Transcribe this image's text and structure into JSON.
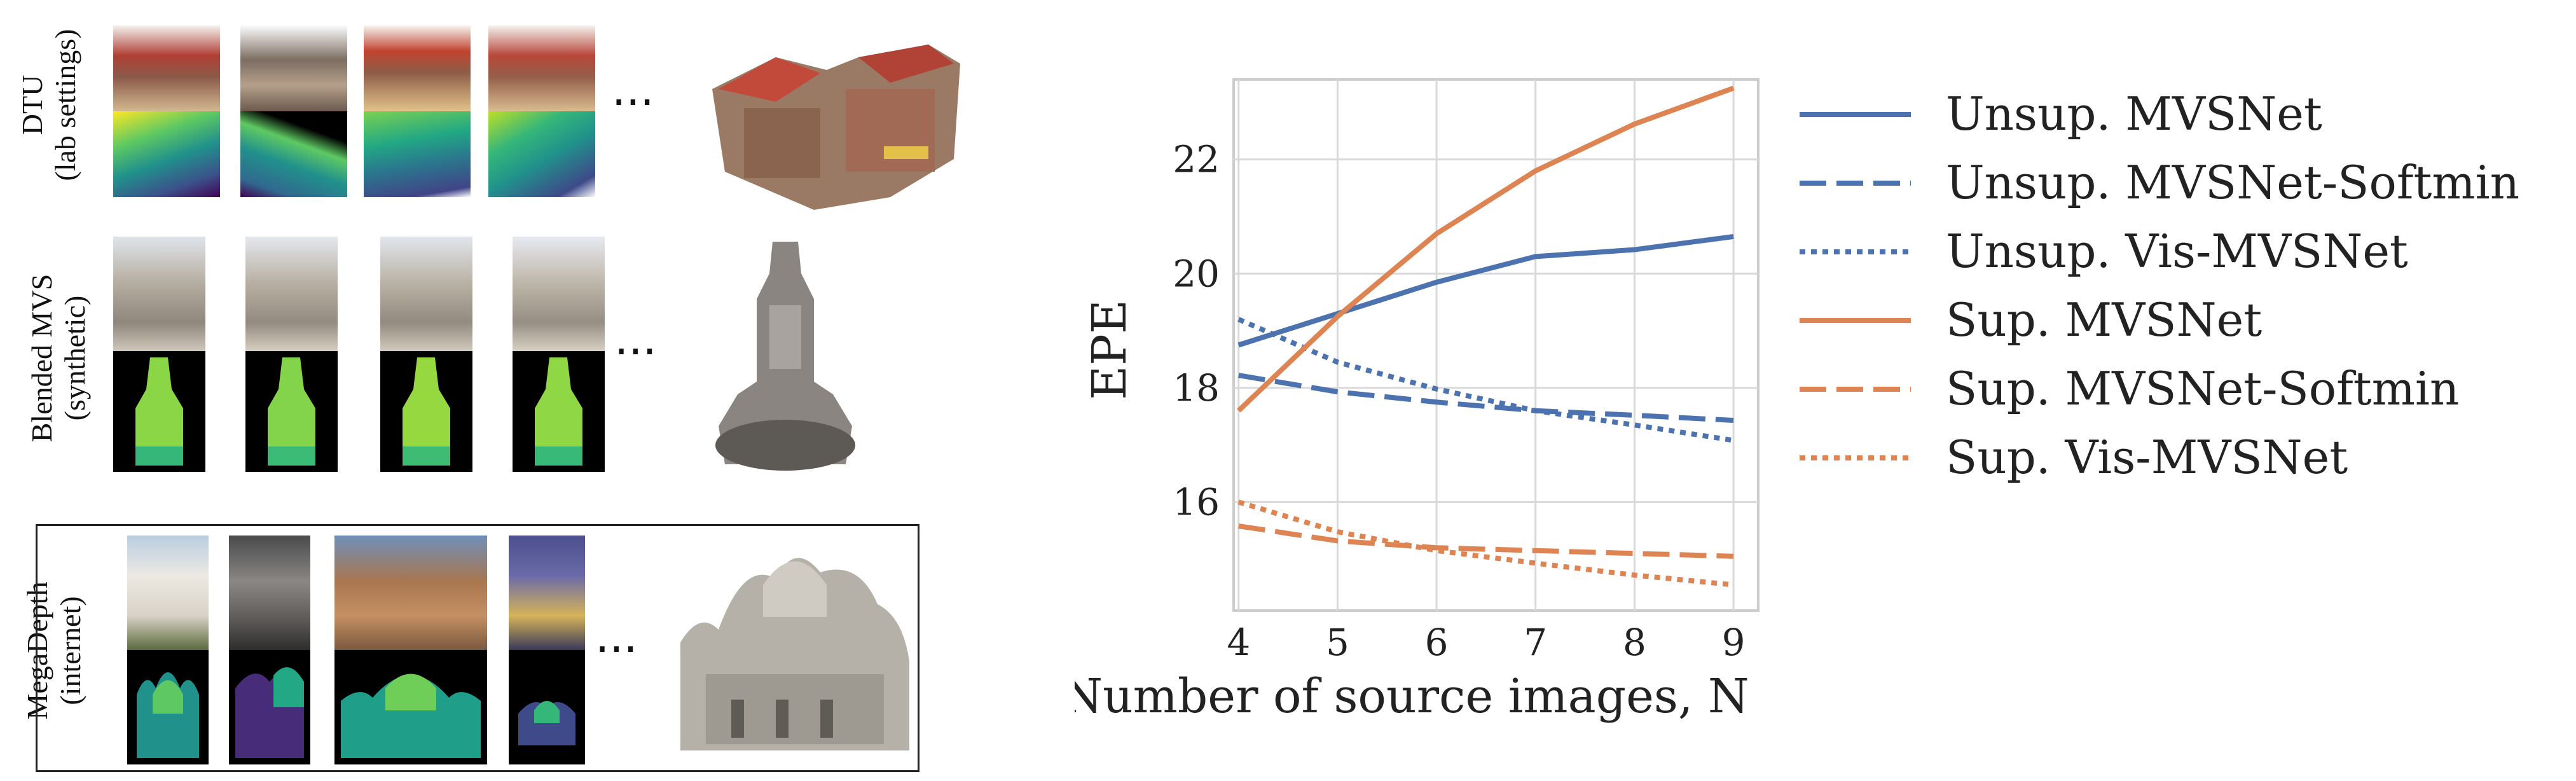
{
  "figure": {
    "rows": [
      {
        "label_line1": "DTU",
        "label_line2": "(lab settings)"
      },
      {
        "label_line1": "Blended MVS",
        "label_line2": "(synthetic)"
      },
      {
        "label_line1": "MegaDepth",
        "label_line2": "(internet)"
      }
    ],
    "ellipsis": "···"
  },
  "colors": {
    "blue": "#4c72b0",
    "orange": "#dd8452",
    "grid": "#d9d9d9",
    "frame": "#cccccc"
  },
  "chart_data": {
    "type": "line",
    "title": "",
    "xlabel": "Number of source images, N",
    "ylabel": "EPE",
    "x": [
      4,
      5,
      6,
      7,
      8,
      9
    ],
    "xlim": [
      3.95,
      9.25
    ],
    "ylim": [
      14.1,
      23.4
    ],
    "xticks": [
      "4",
      "5",
      "6",
      "7",
      "8",
      "9"
    ],
    "yticks": [
      "16",
      "18",
      "20",
      "22"
    ],
    "ytick_values": [
      16,
      18,
      20,
      22
    ],
    "grid": true,
    "legend_position": "right",
    "series": [
      {
        "name": "Unsup. MVSNet",
        "color": "#4c72b0",
        "style": "solid",
        "values": [
          18.75,
          19.3,
          19.85,
          20.3,
          20.42,
          20.65
        ]
      },
      {
        "name": "Unsup. MVSNet-Softmin",
        "color": "#4c72b0",
        "style": "dashed",
        "values": [
          18.22,
          17.93,
          17.75,
          17.6,
          17.52,
          17.43
        ]
      },
      {
        "name": "Unsup. Vis-MVSNet",
        "color": "#4c72b0",
        "style": "dotted",
        "values": [
          19.2,
          18.45,
          17.98,
          17.6,
          17.35,
          17.08
        ]
      },
      {
        "name": "Sup. MVSNet",
        "color": "#dd8452",
        "style": "solid",
        "values": [
          17.6,
          19.25,
          20.7,
          21.8,
          22.62,
          23.25
        ]
      },
      {
        "name": "Sup. MVSNet-Softmin",
        "color": "#dd8452",
        "style": "dashed",
        "values": [
          15.58,
          15.32,
          15.2,
          15.15,
          15.1,
          15.05
        ]
      },
      {
        "name": "Sup. Vis-MVSNet",
        "color": "#dd8452",
        "style": "dotted",
        "values": [
          16.0,
          15.48,
          15.15,
          14.93,
          14.72,
          14.55
        ]
      }
    ]
  }
}
